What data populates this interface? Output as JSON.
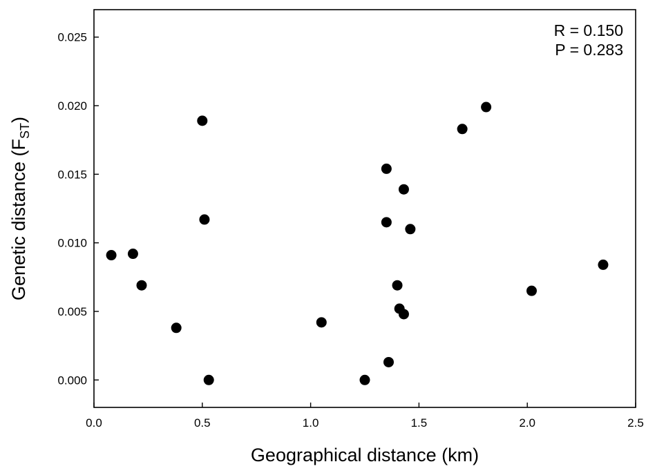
{
  "chart_data": {
    "type": "scatter",
    "xlabel": "Geographical distance (km)",
    "ylabel": {
      "main": "Genetic distance (F",
      "sub": "ST",
      "close": ")"
    },
    "xlim": [
      0.0,
      2.5
    ],
    "ylim": [
      -0.002,
      0.027
    ],
    "x_ticks": [
      0.0,
      0.5,
      1.0,
      1.5,
      2.0,
      2.5
    ],
    "x_tick_labels": [
      "0.0",
      "0.5",
      "1.0",
      "1.5",
      "2.0",
      "2.5"
    ],
    "y_ticks": [
      0.0,
      0.005,
      0.01,
      0.015,
      0.02,
      0.025
    ],
    "y_tick_labels": [
      "0.000",
      "0.005",
      "0.010",
      "0.015",
      "0.020",
      "0.025"
    ],
    "grid": false,
    "annotations": [
      "R = 0.150",
      "P = 0.283"
    ],
    "annotation_position": "top-right",
    "marker_color": "#000000",
    "points": [
      {
        "x": 0.08,
        "y": 0.0091
      },
      {
        "x": 0.18,
        "y": 0.0092
      },
      {
        "x": 0.22,
        "y": 0.0069
      },
      {
        "x": 0.38,
        "y": 0.0038
      },
      {
        "x": 0.5,
        "y": 0.0189
      },
      {
        "x": 0.51,
        "y": 0.0117
      },
      {
        "x": 0.53,
        "y": 0.0
      },
      {
        "x": 1.05,
        "y": 0.0042
      },
      {
        "x": 1.25,
        "y": 0.0
      },
      {
        "x": 1.35,
        "y": 0.0154
      },
      {
        "x": 1.35,
        "y": 0.0115
      },
      {
        "x": 1.36,
        "y": 0.0013
      },
      {
        "x": 1.4,
        "y": 0.0069
      },
      {
        "x": 1.41,
        "y": 0.0052
      },
      {
        "x": 1.43,
        "y": 0.0139
      },
      {
        "x": 1.43,
        "y": 0.0048
      },
      {
        "x": 1.46,
        "y": 0.011
      },
      {
        "x": 1.7,
        "y": 0.0183
      },
      {
        "x": 1.81,
        "y": 0.0199
      },
      {
        "x": 2.02,
        "y": 0.0065
      },
      {
        "x": 2.35,
        "y": 0.0084
      }
    ]
  }
}
